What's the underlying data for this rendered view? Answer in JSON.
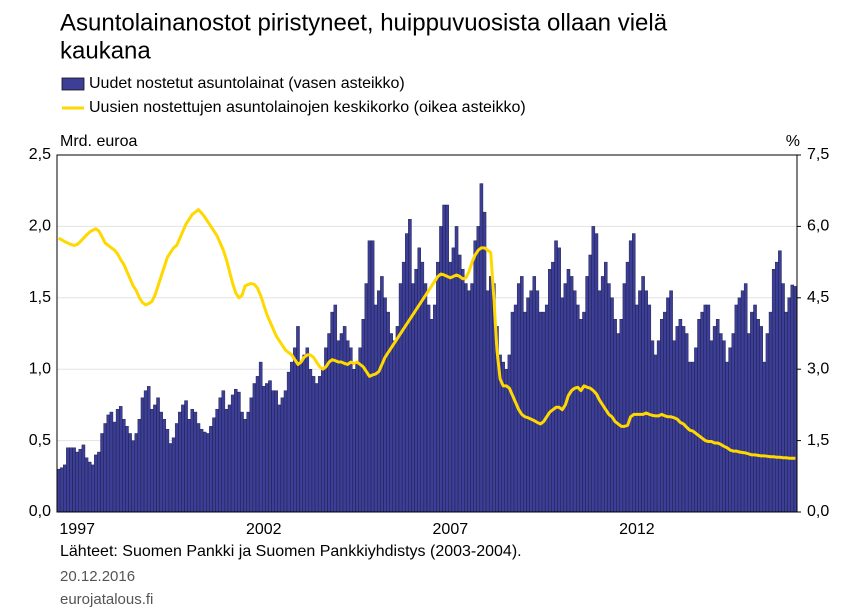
{
  "chart_data": {
    "type": "bar_line",
    "title": "Asuntolainanostot piristyneet, huippuvuosista ollaan vielä",
    "title_line2": "kaukana",
    "y_label": "Mrd. euroa",
    "y2_label": "%",
    "source": "Lähteet: Suomen Pankki ja Suomen Pankkiyhdistys (2003-2004).",
    "date": "20.12.2016",
    "site": "eurojatalous.fi",
    "categories": [
      null,
      null,
      null,
      null,
      null,
      null,
      "1997",
      null,
      null,
      null,
      null,
      null,
      null,
      null,
      null,
      null,
      null,
      null,
      null,
      null,
      null,
      null,
      null,
      null,
      null,
      null,
      null,
      null,
      null,
      null,
      null,
      null,
      null,
      null,
      null,
      null,
      null,
      null,
      null,
      null,
      null,
      null,
      null,
      null,
      null,
      null,
      null,
      null,
      null,
      null,
      null,
      null,
      null,
      null,
      null,
      null,
      null,
      null,
      null,
      null,
      null,
      null,
      null,
      null,
      null,
      null,
      "2002",
      null,
      null,
      null,
      null,
      null,
      null,
      null,
      null,
      null,
      null,
      null,
      null,
      null,
      null,
      null,
      null,
      null,
      null,
      null,
      null,
      null,
      null,
      null,
      null,
      null,
      null,
      null,
      null,
      null,
      null,
      null,
      null,
      null,
      null,
      null,
      null,
      null,
      null,
      null,
      null,
      null,
      null,
      null,
      null,
      null,
      null,
      null,
      null,
      null,
      null,
      null,
      null,
      null,
      null,
      null,
      null,
      null,
      null,
      null,
      "2007",
      null,
      null,
      null,
      null,
      null,
      null,
      null,
      null,
      null,
      null,
      null,
      null,
      null,
      null,
      null,
      null,
      null,
      null,
      null,
      null,
      null,
      null,
      null,
      null,
      null,
      null,
      null,
      null,
      null,
      null,
      null,
      null,
      null,
      null,
      null,
      null,
      null,
      null,
      null,
      null,
      null,
      null,
      null,
      null,
      null,
      null,
      null,
      null,
      null,
      null,
      null,
      null,
      null,
      null,
      null,
      null,
      null,
      null,
      null,
      "2012",
      null,
      null,
      null,
      null,
      null,
      null,
      null,
      null,
      null,
      null,
      null,
      null,
      null,
      null,
      null,
      null,
      null,
      null,
      null,
      null,
      null,
      null,
      null,
      null,
      null,
      null,
      null,
      null,
      null,
      null,
      null,
      null,
      null,
      null,
      null,
      null,
      null,
      null,
      null,
      null,
      null,
      null,
      null,
      null,
      null,
      null,
      null,
      null,
      null,
      null,
      null
    ],
    "series": [
      {
        "name": "Uudet nostetut asuntolainat (vasen asteikko)",
        "type": "bar",
        "axis": "y",
        "color": "#3c3f95",
        "values": [
          0.3,
          0.31,
          0.33,
          0.45,
          0.45,
          0.45,
          0.42,
          0.44,
          0.47,
          0.38,
          0.35,
          0.33,
          0.4,
          0.42,
          0.55,
          0.62,
          0.68,
          0.7,
          0.63,
          0.72,
          0.74,
          0.65,
          0.6,
          0.55,
          0.5,
          0.55,
          0.65,
          0.8,
          0.85,
          0.88,
          0.72,
          0.75,
          0.8,
          0.7,
          0.65,
          0.58,
          0.48,
          0.52,
          0.62,
          0.7,
          0.75,
          0.78,
          0.65,
          0.72,
          0.7,
          0.62,
          0.58,
          0.56,
          0.55,
          0.6,
          0.66,
          0.72,
          0.8,
          0.85,
          0.72,
          0.75,
          0.82,
          0.86,
          0.84,
          0.7,
          0.65,
          0.7,
          0.8,
          0.9,
          0.95,
          1.05,
          0.88,
          0.9,
          0.92,
          0.85,
          0.85,
          0.75,
          0.8,
          0.85,
          0.98,
          1.05,
          1.15,
          1.3,
          1.05,
          1.1,
          1.15,
          1.0,
          0.95,
          0.9,
          0.95,
          1.0,
          1.15,
          1.25,
          1.4,
          1.45,
          1.2,
          1.25,
          1.3,
          1.2,
          1.15,
          1.0,
          1.05,
          1.15,
          1.35,
          1.6,
          1.9,
          1.9,
          1.45,
          1.55,
          1.65,
          1.5,
          1.4,
          1.25,
          1.2,
          1.3,
          1.6,
          1.75,
          1.95,
          2.05,
          1.6,
          1.7,
          1.85,
          1.75,
          1.6,
          1.45,
          1.35,
          1.45,
          1.75,
          2.0,
          2.15,
          2.15,
          1.75,
          1.85,
          2.0,
          1.8,
          1.7,
          1.6,
          1.55,
          1.6,
          1.9,
          2.0,
          2.3,
          2.1,
          1.55,
          1.65,
          1.6,
          1.3,
          1.1,
          1.05,
          1.0,
          1.1,
          1.4,
          1.45,
          1.6,
          1.65,
          1.4,
          1.5,
          1.55,
          1.65,
          1.55,
          1.4,
          1.4,
          1.45,
          1.7,
          1.75,
          1.9,
          1.85,
          1.5,
          1.6,
          1.7,
          1.65,
          1.55,
          1.45,
          1.35,
          1.4,
          1.65,
          1.8,
          2.0,
          1.95,
          1.55,
          1.65,
          1.75,
          1.6,
          1.5,
          1.35,
          1.25,
          1.35,
          1.6,
          1.75,
          1.9,
          1.95,
          1.45,
          1.55,
          1.65,
          1.55,
          1.45,
          1.2,
          1.1,
          1.2,
          1.35,
          1.4,
          1.5,
          1.55,
          1.2,
          1.3,
          1.35,
          1.3,
          1.25,
          1.05,
          1.05,
          1.15,
          1.35,
          1.4,
          1.45,
          1.45,
          1.2,
          1.3,
          1.35,
          1.25,
          1.2,
          1.05,
          1.15,
          1.25,
          1.45,
          1.5,
          1.55,
          1.6,
          1.25,
          1.4,
          1.45,
          1.35,
          1.3,
          1.05,
          1.25,
          1.4,
          1.7,
          1.75,
          1.83,
          1.6,
          1.4,
          1.5,
          1.59,
          1.58
        ]
      },
      {
        "name": "Uusien nostettujen asuntolainojen keskikorko (oikea asteikko)",
        "type": "line",
        "axis": "y2",
        "color": "#ffd800",
        "values": [
          5.75,
          5.72,
          5.68,
          5.65,
          5.62,
          5.6,
          5.62,
          5.68,
          5.75,
          5.82,
          5.88,
          5.92,
          5.95,
          5.9,
          5.78,
          5.65,
          5.6,
          5.55,
          5.5,
          5.42,
          5.3,
          5.2,
          5.05,
          4.9,
          4.75,
          4.65,
          4.5,
          4.4,
          4.35,
          4.38,
          4.42,
          4.55,
          4.75,
          4.95,
          5.15,
          5.35,
          5.45,
          5.55,
          5.6,
          5.75,
          5.9,
          6.05,
          6.15,
          6.25,
          6.3,
          6.35,
          6.28,
          6.2,
          6.1,
          6.0,
          5.9,
          5.8,
          5.65,
          5.5,
          5.3,
          5.05,
          4.8,
          4.6,
          4.5,
          4.55,
          4.75,
          4.78,
          4.8,
          4.78,
          4.7,
          4.55,
          4.35,
          4.15,
          4.0,
          3.85,
          3.7,
          3.6,
          3.5,
          3.4,
          3.35,
          3.3,
          3.2,
          3.1,
          3.15,
          3.25,
          3.3,
          3.3,
          3.25,
          3.15,
          3.05,
          3.0,
          3.05,
          3.15,
          3.2,
          3.18,
          3.15,
          3.15,
          3.12,
          3.1,
          3.15,
          3.12,
          3.15,
          3.1,
          3.05,
          2.95,
          2.85,
          2.88,
          2.9,
          2.95,
          3.1,
          3.25,
          3.35,
          3.45,
          3.55,
          3.65,
          3.75,
          3.85,
          3.95,
          4.05,
          4.15,
          4.25,
          4.35,
          4.45,
          4.55,
          4.65,
          4.75,
          4.85,
          4.95,
          5.0,
          4.98,
          4.95,
          4.92,
          4.95,
          4.98,
          4.95,
          4.9,
          4.92,
          5.05,
          5.25,
          5.4,
          5.5,
          5.55,
          5.55,
          5.5,
          5.45,
          4.5,
          3.4,
          2.8,
          2.65,
          2.65,
          2.6,
          2.45,
          2.3,
          2.15,
          2.05,
          2.0,
          1.98,
          1.95,
          1.92,
          1.88,
          1.85,
          1.9,
          2.0,
          2.1,
          2.15,
          2.2,
          2.2,
          2.15,
          2.25,
          2.45,
          2.55,
          2.6,
          2.62,
          2.55,
          2.65,
          2.62,
          2.6,
          2.55,
          2.48,
          2.35,
          2.25,
          2.15,
          2.05,
          2.0,
          1.9,
          1.85,
          1.8,
          1.8,
          1.82,
          2.0,
          2.05,
          2.05,
          2.05,
          2.05,
          2.08,
          2.05,
          2.03,
          2.02,
          2.02,
          2.05,
          2.02,
          2.0,
          2.0,
          1.98,
          1.95,
          1.88,
          1.85,
          1.78,
          1.72,
          1.7,
          1.65,
          1.6,
          1.55,
          1.5,
          1.48,
          1.48,
          1.45,
          1.45,
          1.42,
          1.38,
          1.35,
          1.3,
          1.28,
          1.28,
          1.26,
          1.25,
          1.24,
          1.22,
          1.2,
          1.2,
          1.19,
          1.18,
          1.18,
          1.17,
          1.16,
          1.16,
          1.15,
          1.15,
          1.14,
          1.14,
          1.13,
          1.13,
          1.13
        ]
      }
    ],
    "ylim": [
      0,
      2.5
    ],
    "yticks": [
      {
        "value": 0,
        "label": "0,0"
      },
      {
        "value": 0.5,
        "label": "0,5"
      },
      {
        "value": 1,
        "label": "1,0"
      },
      {
        "value": 1.5,
        "label": "1,5"
      },
      {
        "value": 2,
        "label": "2,0"
      },
      {
        "value": 2.5,
        "label": "2,5"
      }
    ],
    "y2lim": [
      0,
      7.5
    ],
    "y2ticks": [
      {
        "value": 0,
        "label": "0,0"
      },
      {
        "value": 1.5,
        "label": "1,5"
      },
      {
        "value": 3,
        "label": "3,0"
      },
      {
        "value": 4.5,
        "label": "4,5"
      },
      {
        "value": 6,
        "label": "6,0"
      },
      {
        "value": 7.5,
        "label": "7,5"
      }
    ]
  }
}
